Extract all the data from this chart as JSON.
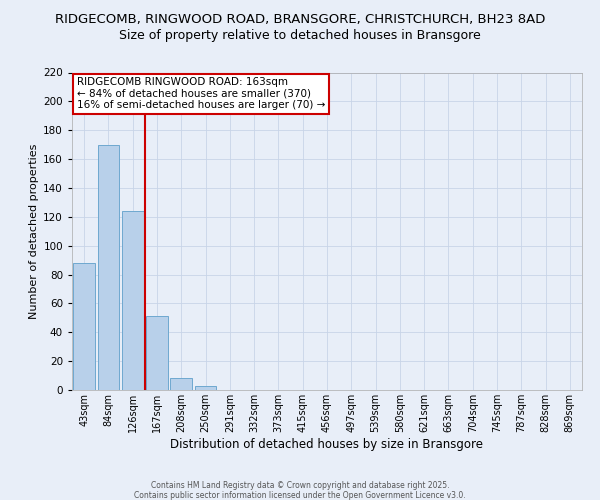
{
  "title_line1": "RIDGECOMB, RINGWOOD ROAD, BRANSGORE, CHRISTCHURCH, BH23 8AD",
  "title_line2": "Size of property relative to detached houses in Bransgore",
  "xlabel": "Distribution of detached houses by size in Bransgore",
  "ylabel": "Number of detached properties",
  "bar_labels": [
    "43sqm",
    "84sqm",
    "126sqm",
    "167sqm",
    "208sqm",
    "250sqm",
    "291sqm",
    "332sqm",
    "373sqm",
    "415sqm",
    "456sqm",
    "497sqm",
    "539sqm",
    "580sqm",
    "621sqm",
    "663sqm",
    "704sqm",
    "745sqm",
    "787sqm",
    "828sqm",
    "869sqm"
  ],
  "bar_values": [
    88,
    170,
    124,
    51,
    8,
    3,
    0,
    0,
    0,
    0,
    0,
    0,
    0,
    0,
    0,
    0,
    0,
    0,
    0,
    0,
    0
  ],
  "bar_color": "#b8d0ea",
  "bar_edge_color": "#6ea8d0",
  "vline_color": "#cc0000",
  "ylim": [
    0,
    220
  ],
  "yticks": [
    0,
    20,
    40,
    60,
    80,
    100,
    120,
    140,
    160,
    180,
    200,
    220
  ],
  "annotation_line1": "RIDGECOMB RINGWOOD ROAD: 163sqm",
  "annotation_line2": "← 84% of detached houses are smaller (370)",
  "annotation_line3": "16% of semi-detached houses are larger (70) →",
  "annotation_box_color": "#ffffff",
  "annotation_box_edge": "#cc0000",
  "footer1": "Contains HM Land Registry data © Crown copyright and database right 2025.",
  "footer2": "Contains public sector information licensed under the Open Government Licence v3.0.",
  "bg_color": "#e8eef8",
  "grid_color": "#c8d4e8",
  "title_fontsize": 9.5,
  "subtitle_fontsize": 9
}
